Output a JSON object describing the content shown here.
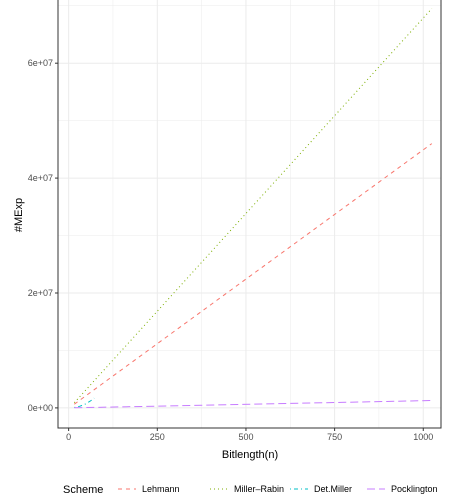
{
  "chart_data": {
    "type": "line",
    "title": "",
    "xlabel": "Bitlength(n)",
    "ylabel": "#MExp",
    "xlim": [
      -30,
      1050
    ],
    "ylim": [
      -3500000,
      71000000
    ],
    "x_ticks": [
      0,
      250,
      500,
      750,
      1000
    ],
    "x_tick_labels": [
      "0",
      "250",
      "500",
      "750",
      "1000"
    ],
    "y_ticks": [
      0,
      20000000,
      40000000,
      60000000
    ],
    "y_tick_labels": [
      "0e+00",
      "2e+07",
      "4e+07",
      "6e+07"
    ],
    "grid": true,
    "legend_title": "Scheme",
    "legend_position": "bottom",
    "series": [
      {
        "name": "Lehmann",
        "color": "#F8766D",
        "dash": "dashed",
        "x": [
          16,
          1024
        ],
        "y": [
          650000,
          46000000
        ]
      },
      {
        "name": "Miller–Rabin",
        "color": "#7CAE00",
        "dash": "dotted",
        "x": [
          16,
          1024
        ],
        "y": [
          900000,
          69500000
        ]
      },
      {
        "name": "Det.Miller",
        "color": "#00BFC4",
        "dash": "dotdash",
        "x": [
          16,
          32,
          48,
          64,
          72
        ],
        "y": [
          60000,
          300000,
          700000,
          1300000,
          1700000
        ]
      },
      {
        "name": "Pocklington",
        "color": "#C77CFF",
        "dash": "longdash",
        "x": [
          16,
          256,
          512,
          768,
          1024
        ],
        "y": [
          20000,
          320000,
          640000,
          960000,
          1280000
        ]
      }
    ]
  }
}
